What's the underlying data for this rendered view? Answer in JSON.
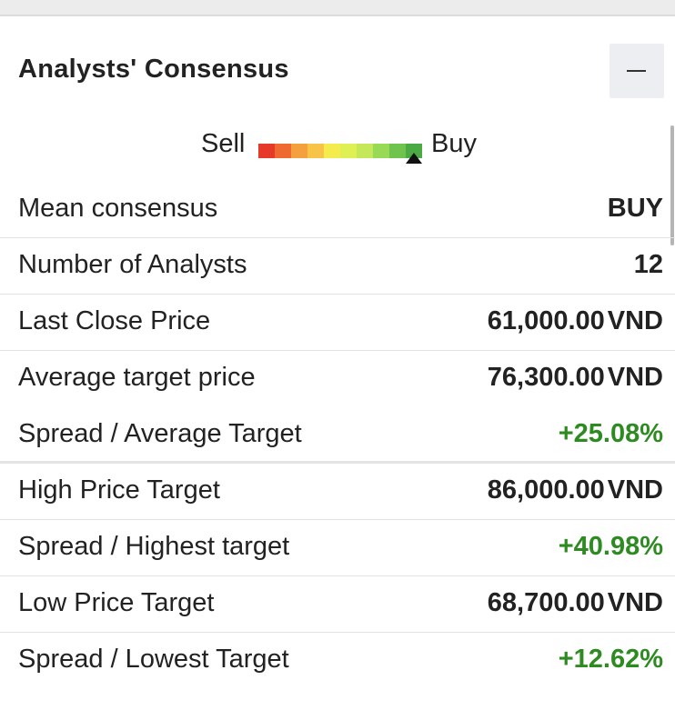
{
  "panel": {
    "title": "Analysts' Consensus",
    "collapse_symbol": "−"
  },
  "gauge": {
    "sell_label": "Sell",
    "buy_label": "Buy",
    "segment_colors": [
      "#e53a2a",
      "#ef6a33",
      "#f5a03f",
      "#f8c447",
      "#f3ec4c",
      "#dff055",
      "#c5e85b",
      "#98d956",
      "#6fc44d",
      "#4caa45"
    ],
    "marker_position": 1.0
  },
  "rows": [
    {
      "label": "Mean consensus",
      "value": "BUY",
      "currency": ""
    },
    {
      "label": "Number of Analysts",
      "value": "12",
      "currency": ""
    },
    {
      "label": "Last Close Price",
      "value": "61,000.00",
      "currency": "VND"
    },
    {
      "label": "Average target price",
      "value": "76,300.00",
      "currency": "VND"
    },
    {
      "label": "Spread / Average Target",
      "value": "+25.08%",
      "currency": ""
    },
    {
      "label": "High Price Target",
      "value": "86,000.00",
      "currency": "VND"
    },
    {
      "label": "Spread / Highest target",
      "value": "+40.98%",
      "currency": ""
    },
    {
      "label": "Low Price Target",
      "value": "68,700.00",
      "currency": "VND"
    },
    {
      "label": "Spread / Lowest Target",
      "value": "+12.62%",
      "currency": ""
    }
  ],
  "colors": {
    "positive": "#2e8b22"
  }
}
